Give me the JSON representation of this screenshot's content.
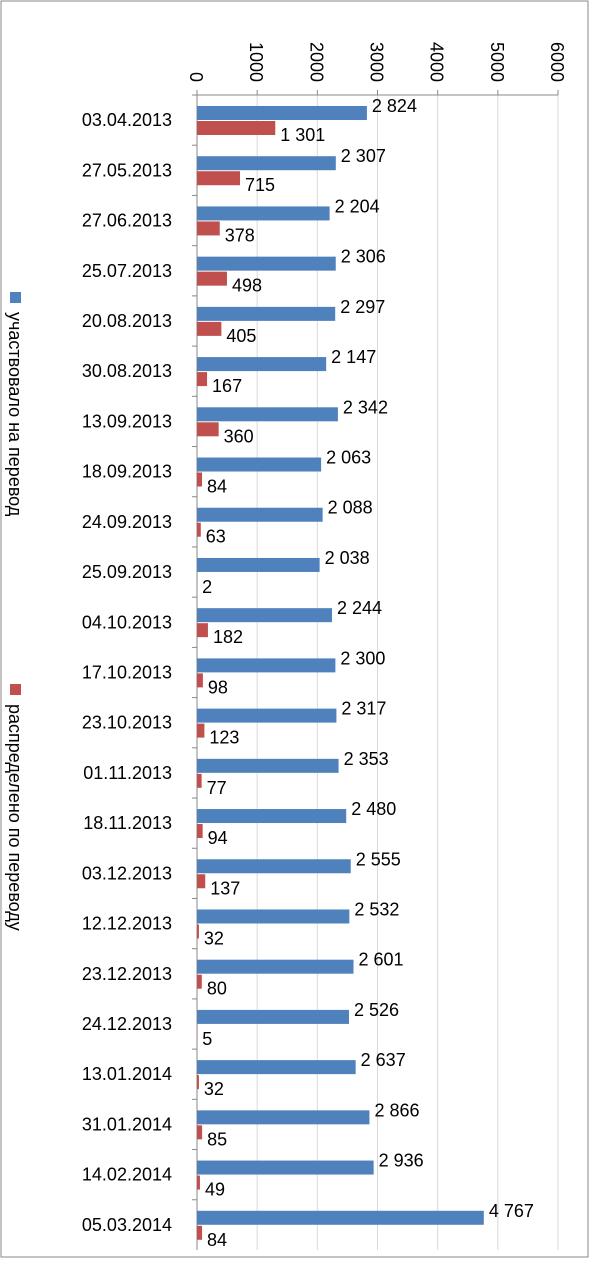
{
  "chart_data": {
    "type": "bar",
    "orientation": "horizontal",
    "categories": [
      "03.04.2013",
      "27.05.2013",
      "27.06.2013",
      "25.07.2013",
      "20.08.2013",
      "30.08.2013",
      "13.09.2013",
      "18.09.2013",
      "24.09.2013",
      "25.09.2013",
      "04.10.2013",
      "17.10.2013",
      "23.10.2013",
      "01.11.2013",
      "18.11.2013",
      "03.12.2013",
      "12.12.2013",
      "23.12.2013",
      "24.12.2013",
      "13.01.2014",
      "31.01.2014",
      "14.02.2014",
      "05.03.2014"
    ],
    "series": [
      {
        "name": "участвовало на перевод",
        "color": "#4f81bd",
        "values": [
          2824,
          2307,
          2204,
          2306,
          2297,
          2147,
          2342,
          2063,
          2088,
          2038,
          2244,
          2300,
          2317,
          2353,
          2480,
          2555,
          2532,
          2601,
          2526,
          2637,
          2866,
          2936,
          4767
        ],
        "value_labels": [
          "2 824",
          "2 307",
          "2 204",
          "2 306",
          "2 297",
          "2 147",
          "2 342",
          "2 063",
          "2 088",
          "2 038",
          "2 244",
          "2 300",
          "2 317",
          "2 353",
          "2 480",
          "2 555",
          "2 532",
          "2 601",
          "2 526",
          "2 637",
          "2 866",
          "2 936",
          "4 767"
        ]
      },
      {
        "name": "распределено по переводу",
        "color": "#c0504d",
        "values": [
          1301,
          715,
          378,
          498,
          405,
          167,
          360,
          84,
          63,
          2,
          182,
          98,
          123,
          77,
          94,
          137,
          32,
          80,
          5,
          32,
          85,
          49,
          84
        ],
        "value_labels": [
          "1 301",
          "715",
          "378",
          "498",
          "405",
          "167",
          "360",
          "84",
          "63",
          "2",
          "182",
          "98",
          "123",
          "77",
          "94",
          "137",
          "32",
          "80",
          "5",
          "32",
          "85",
          "49",
          "84"
        ]
      }
    ],
    "xlim": [
      0,
      6000
    ],
    "xticks": [
      0,
      1000,
      2000,
      3000,
      4000,
      5000,
      6000
    ],
    "grid": true
  }
}
